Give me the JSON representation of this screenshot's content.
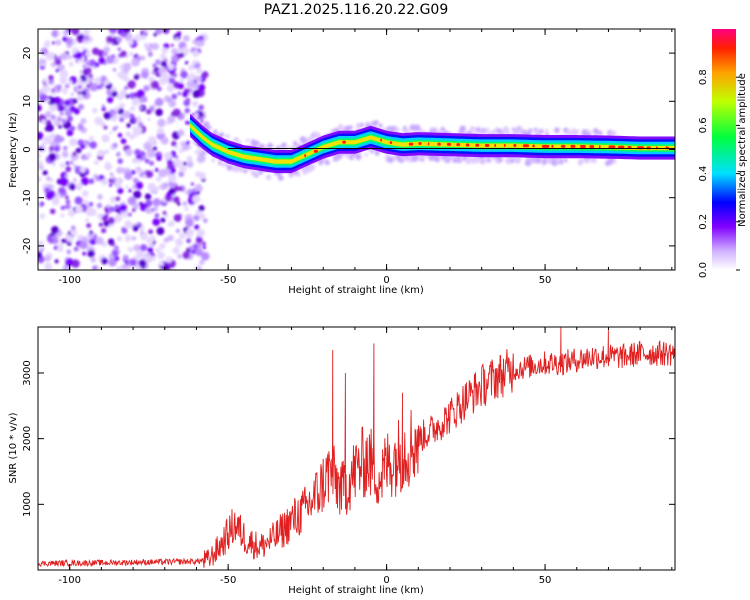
{
  "title": "PAZ1.2025.116.20.22.G09",
  "colors": {
    "snr_line": "#e02020",
    "track_line": "#000000",
    "frame": "#000000",
    "background": "#ffffff"
  },
  "chart_data": [
    {
      "type": "heatmap",
      "name": "spectrogram",
      "xlabel": "Height of straight line (km)",
      "ylabel": "Frequency (Hz)",
      "xlim": [
        -110,
        91
      ],
      "ylim": [
        -25,
        25
      ],
      "xticks": [
        -100,
        -50,
        0,
        50
      ],
      "yticks": [
        -20,
        -10,
        0,
        10,
        20
      ],
      "colorbar": {
        "label": "Normalized spectral amplitude",
        "range": [
          0,
          1
        ],
        "ticks": [
          0.0,
          0.2,
          0.4,
          0.6,
          0.8
        ],
        "tick_labels": [
          "0.0",
          "0.2",
          "0.4",
          "0.6",
          "0.8"
        ]
      },
      "track": {
        "x": [
          -62,
          -58,
          -55,
          -50,
          -45,
          -40,
          -35,
          -30,
          -25,
          -20,
          -15,
          -10,
          -5,
          0,
          5,
          10,
          20,
          30,
          40,
          50,
          60,
          70,
          80,
          91
        ],
        "y": [
          5,
          2.5,
          1,
          -0.5,
          -1.5,
          -2,
          -2.5,
          -2.5,
          -1,
          0.5,
          1.5,
          1.5,
          2.5,
          1.5,
          1,
          1.2,
          1,
          0.8,
          0.8,
          0.6,
          0.6,
          0.5,
          0.3,
          0.3
        ]
      }
    },
    {
      "type": "line",
      "name": "snr",
      "xlabel": "Height of straight line (km)",
      "ylabel": "SNR (10 * v/v)",
      "xlim": [
        -110,
        91
      ],
      "ylim": [
        0,
        3700
      ],
      "xticks": [
        -100,
        -50,
        0,
        50
      ],
      "yticks": [
        1000,
        2000,
        3000
      ],
      "envelope": {
        "x": [
          -110,
          -90,
          -60,
          -56,
          -52,
          -48,
          -44,
          -40,
          -35,
          -30,
          -26,
          -22,
          -18,
          -14,
          -10,
          -6,
          -2,
          0,
          5,
          10,
          15,
          20,
          25,
          30,
          35,
          40,
          45,
          50,
          55,
          60,
          65,
          70,
          75,
          80,
          85,
          91
        ],
        "y": [
          100,
          110,
          130,
          160,
          400,
          700,
          450,
          350,
          500,
          750,
          900,
          1150,
          1500,
          1200,
          1500,
          1700,
          1400,
          1600,
          1800,
          2000,
          2150,
          2350,
          2600,
          2800,
          2950,
          3050,
          3100,
          3150,
          3150,
          3200,
          3250,
          3250,
          3250,
          3300,
          3300,
          3300
        ]
      },
      "spikes": [
        {
          "x": -17,
          "y": 3350
        },
        {
          "x": -13,
          "y": 3000
        },
        {
          "x": -4,
          "y": 3450
        },
        {
          "x": 5,
          "y": 2700
        },
        {
          "x": 55,
          "y": 3700
        },
        {
          "x": 70,
          "y": 3650
        }
      ]
    }
  ]
}
